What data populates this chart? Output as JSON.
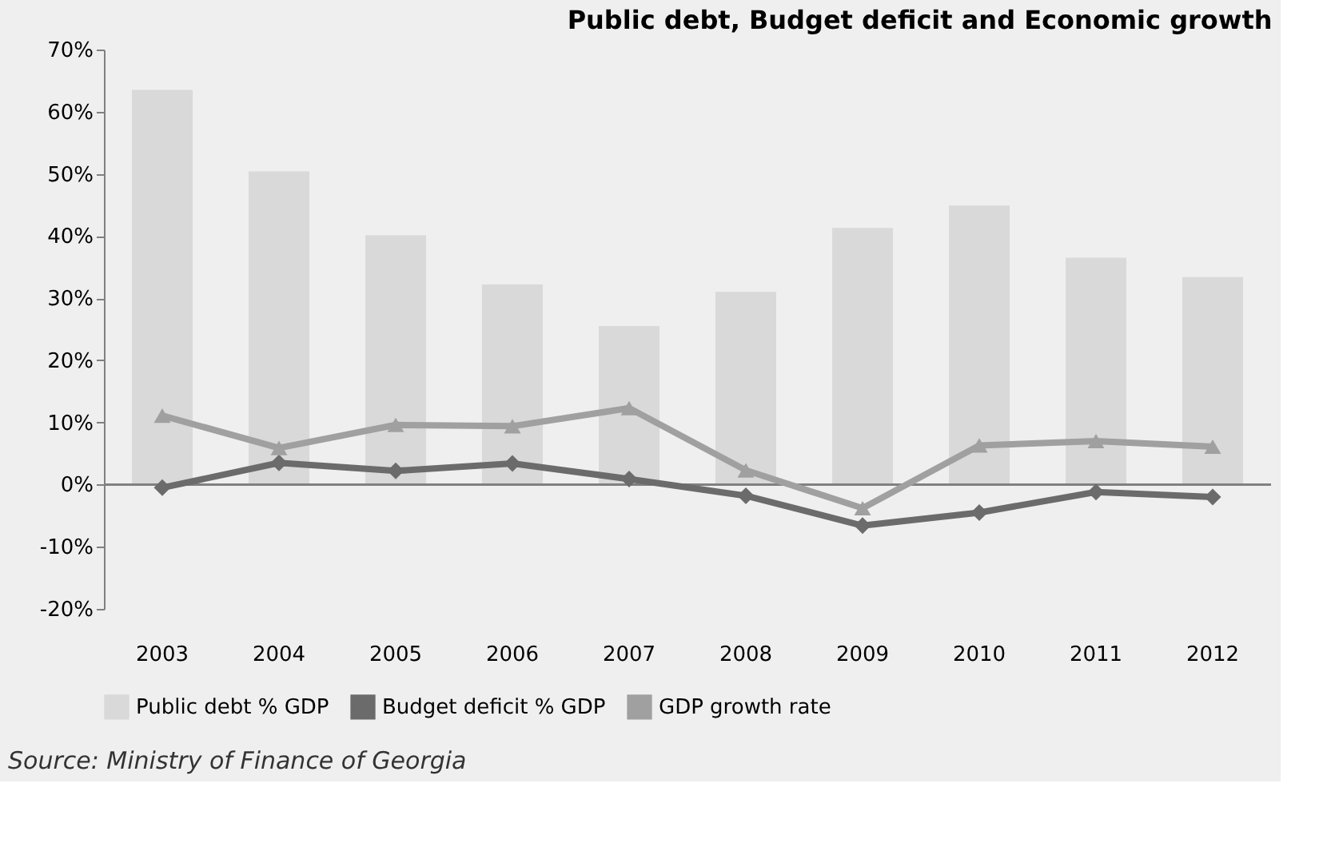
{
  "chart_data": {
    "type": "bar",
    "title": "Public debt, Budget deficit and Economic growth",
    "categories": [
      "2003",
      "2004",
      "2005",
      "2006",
      "2007",
      "2008",
      "2009",
      "2010",
      "2011",
      "2012"
    ],
    "series": [
      {
        "name": "Public debt % GDP",
        "color": "#d9d9d9",
        "values": [
          63.5,
          50.4,
          40.1,
          32.2,
          25.5,
          31.0,
          41.3,
          44.9,
          36.5,
          33.4
        ]
      },
      {
        "name": "Budget deficit % GDP",
        "type": "line",
        "marker": "diamond",
        "color": "#6b6b6b",
        "values": [
          -0.5,
          3.5,
          2.2,
          3.4,
          0.9,
          -1.8,
          -6.6,
          -4.5,
          -1.2,
          -2.0
        ]
      },
      {
        "name": "GDP growth rate",
        "type": "line",
        "marker": "triangle",
        "color": "#a0a0a0",
        "values": [
          11.1,
          5.9,
          9.6,
          9.4,
          12.3,
          2.3,
          -3.8,
          6.3,
          7.0,
          6.1
        ]
      }
    ],
    "ylim": [
      -20,
      70
    ],
    "yticks": [
      {
        "value": -20,
        "label": "-20%"
      },
      {
        "value": -10,
        "label": "-10%"
      },
      {
        "value": 0,
        "label": "0%"
      },
      {
        "value": 10,
        "label": "10%"
      },
      {
        "value": 20,
        "label": "20%"
      },
      {
        "value": 30,
        "label": "30%"
      },
      {
        "value": 40,
        "label": "40%"
      },
      {
        "value": 50,
        "label": "50%"
      },
      {
        "value": 60,
        "label": "60%"
      },
      {
        "value": 70,
        "label": "70%"
      }
    ],
    "grid": false,
    "legend": "bottom",
    "ref_lines": [
      {
        "axis": "y",
        "value": 0,
        "color": "#808080"
      }
    ],
    "annotations": [
      "Source: Ministry of Finance of Georgia"
    ]
  }
}
